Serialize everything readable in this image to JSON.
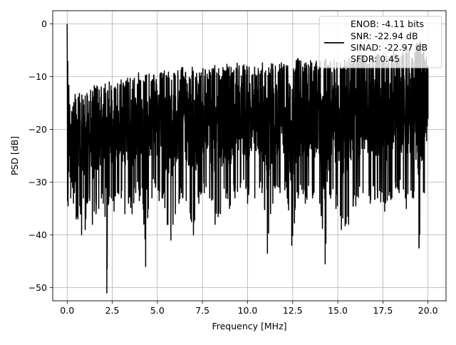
{
  "chart_data": {
    "type": "line",
    "title": "",
    "xlabel": "Frequency [MHz]",
    "ylabel": "PSD [dB]",
    "xlim": [
      -0.8,
      21.0
    ],
    "ylim": [
      -52.5,
      2.5
    ],
    "x_ticks": [
      0.0,
      2.5,
      5.0,
      7.5,
      10.0,
      12.5,
      15.0,
      17.5,
      20.0
    ],
    "x_tick_labels": [
      "0.0",
      "2.5",
      "5.0",
      "7.5",
      "10.0",
      "12.5",
      "15.0",
      "17.5",
      "20.0"
    ],
    "y_ticks": [
      0,
      -10,
      -20,
      -30,
      -40,
      -50
    ],
    "y_tick_labels": [
      "0",
      "−10",
      "−20",
      "−30",
      "−40",
      "−50"
    ],
    "grid": true,
    "legend": {
      "placement": "top-right",
      "entries": [
        "ENOB: -4.11 bits",
        "SNR: -22.94 dB",
        "SINAD: -22.97 dB",
        "SFDR: 0.45"
      ]
    },
    "series": [
      {
        "color": "#000000",
        "x": [
          0.0,
          0.02,
          0.05,
          0.08,
          0.12,
          0.16,
          0.2,
          0.25,
          0.3,
          0.35,
          0.4,
          0.45,
          0.5,
          0.55,
          0.6,
          0.7,
          0.8,
          0.9,
          1.0,
          1.1,
          1.25,
          1.4,
          1.5,
          1.6,
          1.75,
          1.9,
          2.0,
          2.1,
          2.2,
          2.3,
          2.45,
          2.6,
          2.8,
          3.0,
          3.2,
          3.4,
          3.6,
          3.8,
          4.0,
          4.2,
          4.35,
          4.5,
          4.7,
          4.9,
          5.1,
          5.3,
          5.55,
          5.75,
          6.0,
          6.2,
          6.4,
          6.6,
          6.85,
          7.0,
          7.3,
          7.6,
          7.9,
          8.2,
          8.5,
          8.8,
          9.0,
          9.3,
          9.6,
          10.0,
          10.4,
          10.8,
          11.1,
          11.4,
          11.8,
          12.2,
          12.45,
          12.8,
          13.2,
          13.6,
          14.0,
          14.3,
          14.6,
          14.9,
          15.2,
          15.6,
          16.0,
          16.4,
          16.8,
          17.2,
          17.6,
          18.0,
          18.4,
          18.8,
          19.2,
          19.5,
          19.8,
          20.0
        ],
        "y_upper": [
          0.0,
          -4.0,
          -6.0,
          -9.0,
          -14.0,
          -15.0,
          -16.0,
          -14.0,
          -15.0,
          -13.0,
          -14.0,
          -12.5,
          -14.0,
          -13.0,
          -12.5,
          -13.0,
          -12.0,
          -13.5,
          -12.0,
          -13.0,
          -12.0,
          -12.5,
          -11.5,
          -12.0,
          -11.0,
          -12.0,
          -11.5,
          -11.0,
          -11.5,
          -10.5,
          -11.0,
          -10.5,
          -11.0,
          -10.0,
          -11.0,
          -10.0,
          -10.5,
          -10.0,
          -9.0,
          -10.0,
          -9.5,
          -9.0,
          -10.0,
          -9.0,
          -9.5,
          -9.0,
          -8.5,
          -9.0,
          -8.5,
          -9.0,
          -8.0,
          -9.0,
          -8.5,
          -8.0,
          -9.0,
          -8.0,
          -8.5,
          -7.5,
          -8.5,
          -7.5,
          -8.0,
          -7.0,
          -8.0,
          -7.0,
          -8.0,
          -7.0,
          -8.0,
          -6.5,
          -7.5,
          -6.0,
          -7.0,
          -6.5,
          -7.0,
          -6.5,
          -7.0,
          -6.0,
          -7.0,
          -6.5,
          -7.0,
          -6.0,
          -6.5,
          -5.5,
          -6.5,
          -5.5,
          -6.0,
          -5.0,
          -6.0,
          -4.5,
          -5.5,
          -2.5,
          -5.0,
          -6.0
        ],
        "y_lower": [
          -14.0,
          -33.5,
          -34.5,
          -28.0,
          -25.0,
          -29.0,
          -33.0,
          -30.0,
          -31.0,
          -34.0,
          -32.0,
          -30.0,
          -37.0,
          -36.5,
          -37.0,
          -34.5,
          -40.0,
          -33.0,
          -39.0,
          -34.0,
          -33.5,
          -38.0,
          -35.5,
          -36.0,
          -35.0,
          -33.0,
          -34.0,
          -36.5,
          -51.0,
          -34.0,
          -33.0,
          -35.5,
          -32.0,
          -33.0,
          -36.0,
          -34.0,
          -36.0,
          -32.0,
          -33.5,
          -34.0,
          -46.0,
          -35.0,
          -33.0,
          -31.0,
          -33.5,
          -33.0,
          -38.0,
          -41.0,
          -36.0,
          -34.0,
          -33.0,
          -33.5,
          -37.0,
          -40.0,
          -34.0,
          -32.0,
          -33.0,
          -38.0,
          -36.0,
          -33.0,
          -35.0,
          -33.0,
          -31.0,
          -34.0,
          -33.0,
          -32.0,
          -43.5,
          -34.0,
          -32.0,
          -33.0,
          -42.0,
          -33.0,
          -34.0,
          -33.0,
          -34.0,
          -45.5,
          -33.0,
          -35.0,
          -39.0,
          -38.0,
          -34.5,
          -32.0,
          -34.0,
          -33.0,
          -35.5,
          -33.0,
          -32.0,
          -35.0,
          -33.0,
          -42.5,
          -32.0,
          -18.0
        ]
      }
    ]
  }
}
